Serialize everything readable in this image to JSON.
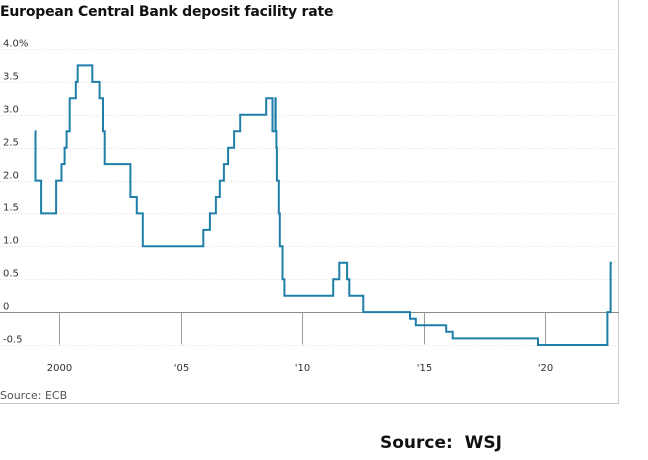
{
  "chart_data": {
    "type": "line",
    "title": "European Central Bank deposit facility rate",
    "source": "Source: ECB",
    "y_tick_labels": [
      "4.0%",
      "3.5",
      "3.0",
      "2.5",
      "2.0",
      "1.5",
      "1.0",
      "0.5",
      "0",
      "-0.5"
    ],
    "y_tick_values": [
      4.0,
      3.5,
      3.0,
      2.5,
      2.0,
      1.5,
      1.0,
      0.5,
      0,
      -0.5
    ],
    "x_tick_labels": [
      "2000",
      "'05",
      "'10",
      "'15",
      "'20"
    ],
    "x_tick_values": [
      2000,
      2005,
      2010,
      2015,
      2020
    ],
    "xlim": [
      1999.0,
      2022.8
    ],
    "ylim": [
      -0.5,
      4.0
    ],
    "grid": true,
    "line_color": "#1f7fa8",
    "series": [
      {
        "values": [
          [
            1999.0,
            2.75
          ],
          [
            1999.02,
            2.0
          ],
          [
            1999.25,
            1.5
          ],
          [
            1999.87,
            2.0
          ],
          [
            2000.09,
            2.25
          ],
          [
            2000.22,
            2.5
          ],
          [
            2000.3,
            2.75
          ],
          [
            2000.43,
            3.25
          ],
          [
            2000.68,
            3.5
          ],
          [
            2000.76,
            3.75
          ],
          [
            2001.36,
            3.5
          ],
          [
            2001.66,
            3.25
          ],
          [
            2001.8,
            2.75
          ],
          [
            2001.87,
            2.25
          ],
          [
            2002.93,
            1.75
          ],
          [
            2003.19,
            1.5
          ],
          [
            2003.44,
            1.0
          ],
          [
            2005.93,
            1.25
          ],
          [
            2006.2,
            1.5
          ],
          [
            2006.45,
            1.75
          ],
          [
            2006.61,
            2.0
          ],
          [
            2006.78,
            2.25
          ],
          [
            2006.95,
            2.5
          ],
          [
            2007.2,
            2.75
          ],
          [
            2007.45,
            3.0
          ],
          [
            2008.52,
            3.25
          ],
          [
            2008.77,
            3.25
          ],
          [
            2008.78,
            2.75
          ],
          [
            2008.89,
            2.75
          ],
          [
            2008.9,
            3.25
          ],
          [
            2008.91,
            2.75
          ],
          [
            2008.94,
            2.5
          ],
          [
            2008.96,
            2.0
          ],
          [
            2009.04,
            1.5
          ],
          [
            2009.08,
            1.0
          ],
          [
            2009.19,
            0.5
          ],
          [
            2009.27,
            0.25
          ],
          [
            2011.28,
            0.5
          ],
          [
            2011.53,
            0.75
          ],
          [
            2011.85,
            0.5
          ],
          [
            2011.94,
            0.25
          ],
          [
            2012.52,
            0.0
          ],
          [
            2014.44,
            -0.1
          ],
          [
            2014.68,
            -0.2
          ],
          [
            2015.93,
            -0.3
          ],
          [
            2016.2,
            -0.4
          ],
          [
            2019.71,
            -0.5
          ],
          [
            2022.57,
            0.0
          ],
          [
            2022.7,
            0.75
          ],
          [
            2022.75,
            0.75
          ]
        ]
      }
    ],
    "footer_source": "Source:  WSJ"
  }
}
